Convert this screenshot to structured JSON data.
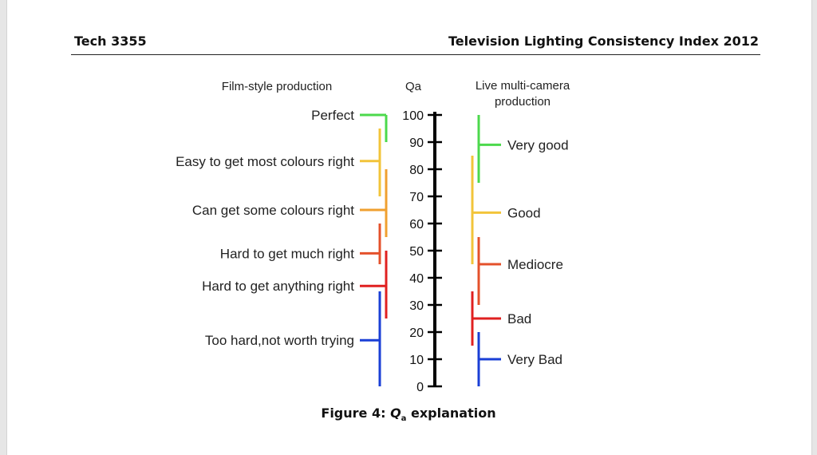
{
  "header": {
    "doc_id": "Tech 3355",
    "doc_title": "Television Lighting Consistency Index 2012"
  },
  "diagram": {
    "left_heading": "Film-style production",
    "center_heading": "Qa",
    "right_heading_line1": "Live multi-camera",
    "right_heading_line2": "production",
    "scale": {
      "min": 0,
      "max": 100,
      "ticks": [
        "0",
        "10",
        "20",
        "30",
        "40",
        "50",
        "60",
        "70",
        "80",
        "90",
        "100"
      ]
    },
    "film_style": [
      {
        "label": "Perfect",
        "low": 90,
        "high": 100,
        "point": 100,
        "color": "#4cd94c"
      },
      {
        "label": "Easy to get most colours right",
        "low": 70,
        "high": 95,
        "point": 83,
        "color": "#f2c43a"
      },
      {
        "label": "Can get some colours right",
        "low": 55,
        "high": 80,
        "point": 65,
        "color": "#f0a030"
      },
      {
        "label": "Hard to get much right",
        "low": 45,
        "high": 60,
        "point": 49,
        "color": "#e4512b"
      },
      {
        "label": "Hard to get anything right",
        "low": 25,
        "high": 50,
        "point": 37,
        "color": "#e02020"
      },
      {
        "label": "Too hard,not worth trying",
        "low": 0,
        "high": 35,
        "point": 17,
        "color": "#1a3fd6"
      }
    ],
    "live_multicamera": [
      {
        "label": "Very good",
        "low": 75,
        "high": 100,
        "point": 89,
        "color": "#4cd94c"
      },
      {
        "label": "Good",
        "low": 45,
        "high": 85,
        "point": 64,
        "color": "#f2c43a"
      },
      {
        "label": "Mediocre",
        "low": 30,
        "high": 55,
        "point": 45,
        "color": "#e4512b"
      },
      {
        "label": "Bad",
        "low": 15,
        "high": 35,
        "point": 25,
        "color": "#e02020"
      },
      {
        "label": "Very Bad",
        "low": 0,
        "high": 20,
        "point": 10,
        "color": "#1a3fd6"
      }
    ]
  },
  "caption": {
    "prefix": "Figure 4: ",
    "symbol": "Q",
    "subscript": "a",
    "suffix": " explanation"
  }
}
